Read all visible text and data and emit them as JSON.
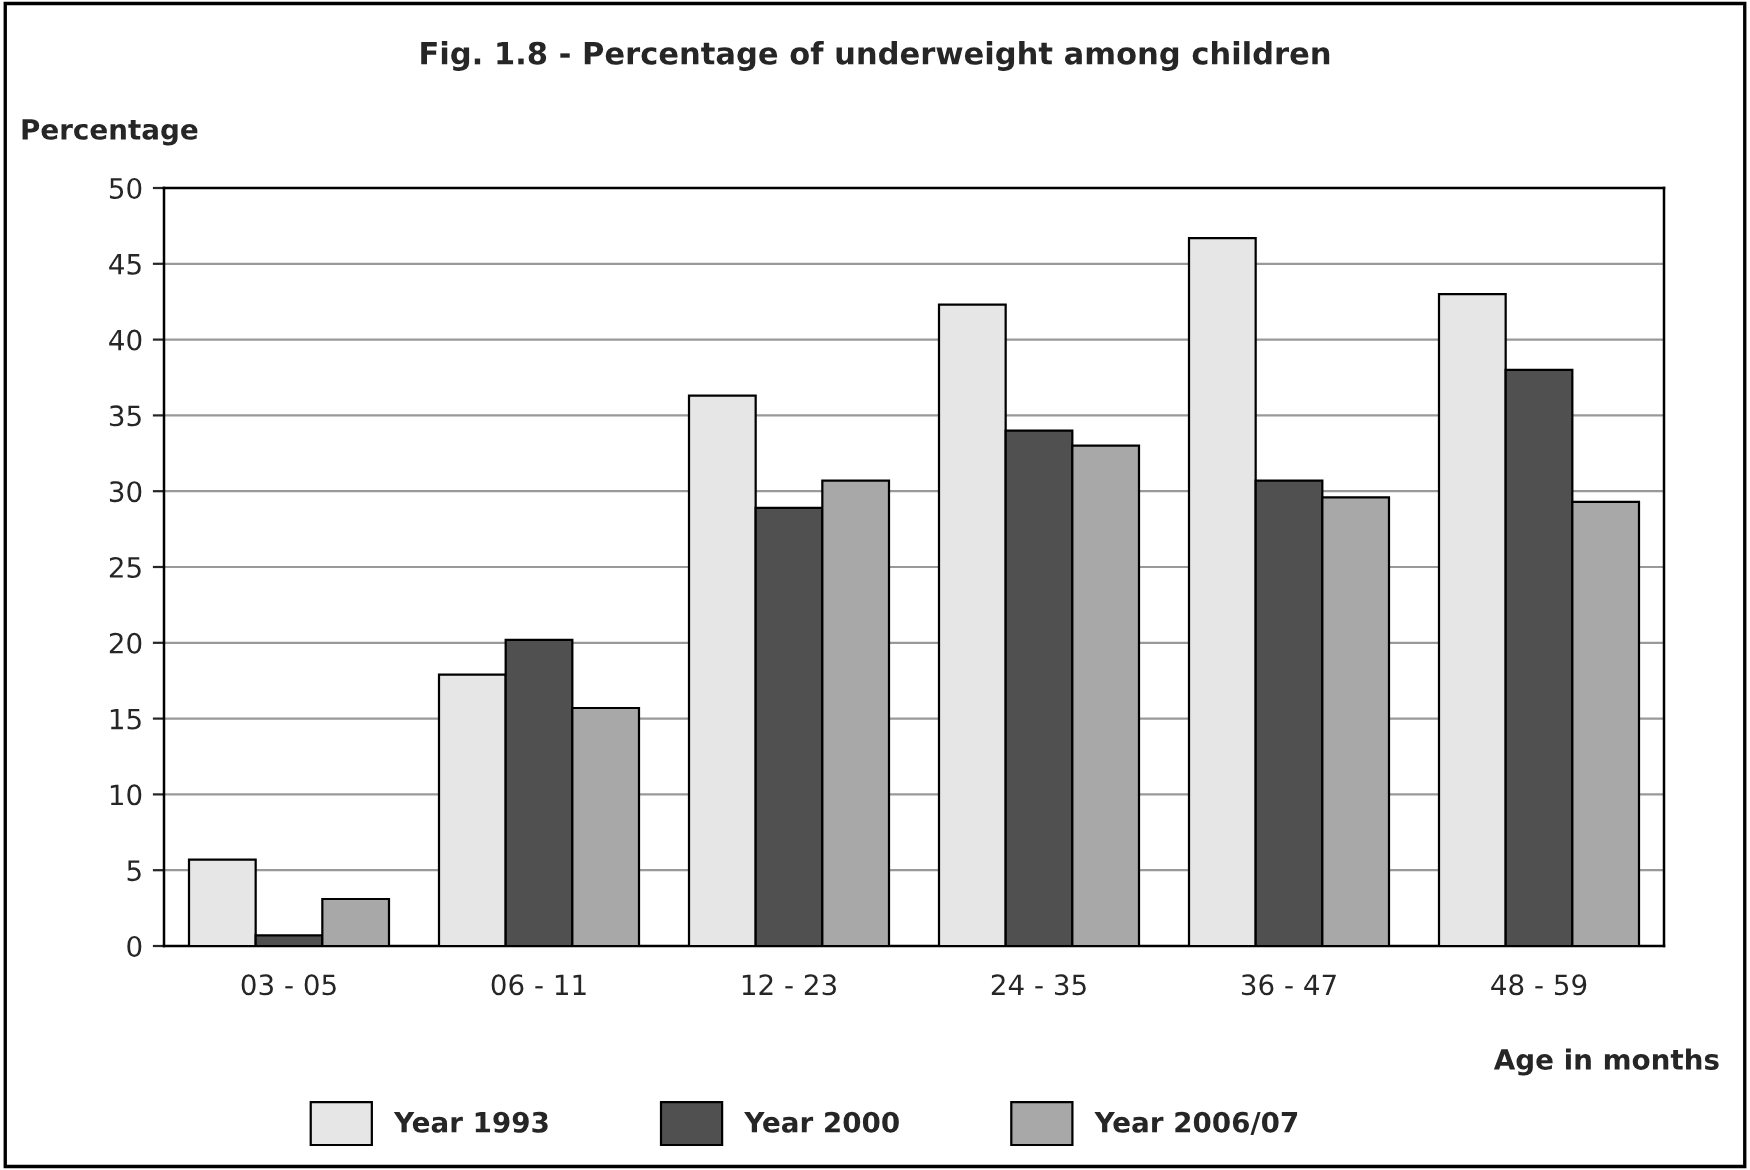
{
  "chart_data": {
    "type": "bar",
    "title": "Fig. 1.8 - Percentage of underweight among children",
    "ylabel": "Percentage",
    "xlabel": "Age in months",
    "categories": [
      "03 - 05",
      "06 - 11",
      "12 - 23",
      "24 - 35",
      "36 - 47",
      "48 - 59"
    ],
    "series": [
      {
        "name": "Year 1993",
        "color": "#e6e6e6",
        "values": [
          5.7,
          17.9,
          36.3,
          42.3,
          46.7,
          43.0
        ]
      },
      {
        "name": "Year 2000",
        "color": "#505050",
        "values": [
          0.7,
          20.2,
          28.9,
          34.0,
          30.7,
          38.0
        ]
      },
      {
        "name": "Year 2006/07",
        "color": "#a8a8a8",
        "values": [
          3.1,
          15.7,
          30.7,
          33.0,
          29.6,
          29.3
        ]
      }
    ],
    "ylim": [
      0,
      50
    ],
    "yticks": [
      0,
      5,
      10,
      15,
      20,
      25,
      30,
      35,
      40,
      45,
      50
    ],
    "grid": "y",
    "legend": "bottom"
  }
}
